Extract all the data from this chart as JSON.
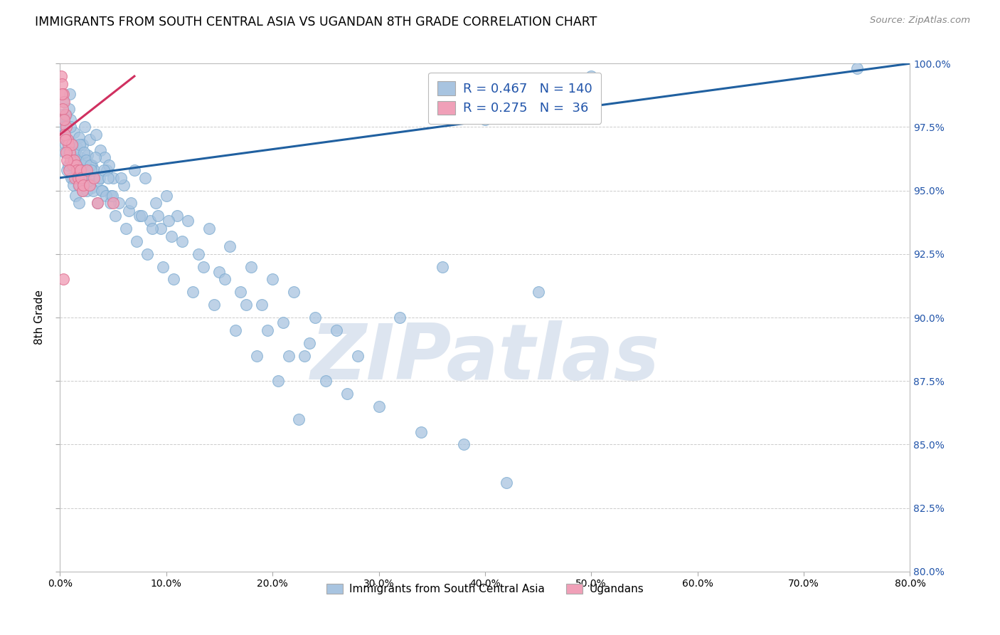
{
  "title": "IMMIGRANTS FROM SOUTH CENTRAL ASIA VS UGANDAN 8TH GRADE CORRELATION CHART",
  "source": "Source: ZipAtlas.com",
  "ylabel": "8th Grade",
  "x_min": 0.0,
  "x_max": 80.0,
  "y_min": 80.0,
  "y_max": 100.0,
  "x_ticks": [
    0.0,
    10.0,
    20.0,
    30.0,
    40.0,
    50.0,
    60.0,
    70.0,
    80.0
  ],
  "y_ticks": [
    80.0,
    82.5,
    85.0,
    87.5,
    90.0,
    92.5,
    95.0,
    97.5,
    100.0
  ],
  "blue_R": 0.467,
  "blue_N": 140,
  "pink_R": 0.275,
  "pink_N": 36,
  "blue_color": "#a8c4e0",
  "blue_edge_color": "#7aaad0",
  "blue_line_color": "#2060a0",
  "pink_color": "#f0a0b8",
  "pink_edge_color": "#e07090",
  "pink_line_color": "#d03060",
  "legend_label_blue": "Immigrants from South Central Asia",
  "legend_label_pink": "Ugandans",
  "watermark": "ZIPatlas",
  "blue_line_x": [
    0.0,
    80.0
  ],
  "blue_line_y": [
    95.5,
    100.0
  ],
  "pink_line_x": [
    0.0,
    7.0
  ],
  "pink_line_y": [
    97.2,
    99.5
  ],
  "blue_scatter_x": [
    0.2,
    0.3,
    0.4,
    0.5,
    0.6,
    0.7,
    0.8,
    0.9,
    1.0,
    1.1,
    1.2,
    1.3,
    1.4,
    1.5,
    1.6,
    1.7,
    1.8,
    1.9,
    2.0,
    2.1,
    2.2,
    2.3,
    2.4,
    2.5,
    2.6,
    2.7,
    2.8,
    2.9,
    3.0,
    3.2,
    3.4,
    3.6,
    3.8,
    4.0,
    4.2,
    4.4,
    4.6,
    4.8,
    5.0,
    5.5,
    6.0,
    6.5,
    7.0,
    7.5,
    8.0,
    8.5,
    9.0,
    9.5,
    10.0,
    10.5,
    11.0,
    12.0,
    13.0,
    14.0,
    15.0,
    16.0,
    17.0,
    18.0,
    19.0,
    20.0,
    21.0,
    22.0,
    23.0,
    24.0,
    25.0,
    26.0,
    27.0,
    28.0,
    30.0,
    32.0,
    34.0,
    36.0,
    38.0,
    40.0,
    42.0,
    45.0,
    0.15,
    0.25,
    0.35,
    0.45,
    0.55,
    0.65,
    0.75,
    0.85,
    0.95,
    1.05,
    1.15,
    1.25,
    1.35,
    1.45,
    1.55,
    1.65,
    1.75,
    1.85,
    2.05,
    2.15,
    2.25,
    2.35,
    2.45,
    2.55,
    2.65,
    2.75,
    2.85,
    2.95,
    3.1,
    3.3,
    3.5,
    3.7,
    3.9,
    4.1,
    4.3,
    4.5,
    4.7,
    4.9,
    5.2,
    5.7,
    6.2,
    6.7,
    7.2,
    7.7,
    8.2,
    8.7,
    9.2,
    9.7,
    10.2,
    10.7,
    11.5,
    12.5,
    13.5,
    14.5,
    15.5,
    16.5,
    17.5,
    18.5,
    19.5,
    20.5,
    21.5,
    22.5,
    23.5,
    50.0,
    75.0
  ],
  "blue_scatter_y": [
    97.5,
    98.5,
    97.2,
    96.8,
    98.0,
    97.0,
    96.5,
    98.8,
    97.8,
    96.0,
    95.5,
    97.3,
    96.2,
    95.8,
    96.7,
    95.2,
    97.1,
    96.3,
    95.9,
    96.8,
    95.5,
    97.5,
    96.1,
    95.7,
    96.4,
    95.3,
    97.0,
    95.1,
    96.0,
    95.8,
    97.2,
    95.4,
    96.6,
    95.0,
    96.3,
    95.8,
    96.0,
    94.8,
    95.5,
    94.5,
    95.2,
    94.2,
    95.8,
    94.0,
    95.5,
    93.8,
    94.5,
    93.5,
    94.8,
    93.2,
    94.0,
    93.8,
    92.5,
    93.5,
    91.8,
    92.8,
    91.0,
    92.0,
    90.5,
    91.5,
    89.8,
    91.0,
    88.5,
    90.0,
    87.5,
    89.5,
    87.0,
    88.5,
    86.5,
    90.0,
    85.5,
    92.0,
    85.0,
    97.8,
    83.5,
    91.0,
    98.0,
    97.8,
    97.5,
    96.5,
    97.0,
    95.8,
    96.0,
    98.2,
    97.5,
    95.5,
    96.8,
    95.2,
    96.5,
    94.8,
    95.5,
    96.2,
    94.5,
    96.8,
    96.0,
    95.0,
    96.5,
    95.8,
    96.2,
    95.0,
    95.5,
    95.2,
    96.0,
    95.8,
    95.0,
    96.3,
    94.5,
    95.5,
    95.0,
    95.8,
    94.8,
    95.5,
    94.5,
    94.8,
    94.0,
    95.5,
    93.5,
    94.5,
    93.0,
    94.0,
    92.5,
    93.5,
    94.0,
    92.0,
    93.8,
    91.5,
    93.0,
    91.0,
    92.0,
    90.5,
    91.5,
    89.5,
    90.5,
    88.5,
    89.5,
    87.5,
    88.5,
    86.0,
    89.0,
    99.5,
    99.8
  ],
  "pink_scatter_x": [
    0.1,
    0.2,
    0.3,
    0.4,
    0.5,
    0.6,
    0.7,
    0.8,
    0.9,
    1.0,
    1.1,
    1.2,
    1.3,
    1.4,
    1.5,
    1.6,
    1.7,
    1.8,
    1.9,
    2.0,
    2.1,
    2.2,
    2.5,
    2.8,
    3.2,
    3.5,
    0.15,
    0.25,
    0.35,
    0.45,
    0.55,
    0.65,
    0.85,
    5.0,
    0.3,
    0.5
  ],
  "pink_scatter_y": [
    99.5,
    99.2,
    98.8,
    98.5,
    98.0,
    97.5,
    97.0,
    96.8,
    96.5,
    96.2,
    96.8,
    96.0,
    96.2,
    95.5,
    96.0,
    95.8,
    95.5,
    95.2,
    95.8,
    95.5,
    95.0,
    95.2,
    95.8,
    95.2,
    95.5,
    94.5,
    98.8,
    98.2,
    97.8,
    97.2,
    96.5,
    96.2,
    95.8,
    94.5,
    91.5,
    97.0
  ]
}
